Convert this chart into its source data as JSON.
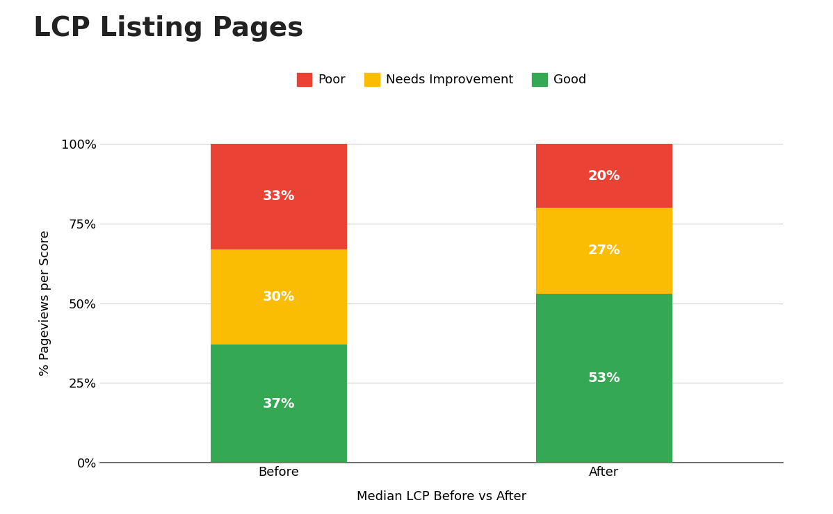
{
  "title": "LCP Listing Pages",
  "xlabel": "Median LCP Before vs After",
  "ylabel": "% Pageviews per Score",
  "categories": [
    "Before",
    "After"
  ],
  "good": [
    37,
    53
  ],
  "needs": [
    30,
    27
  ],
  "poor": [
    33,
    20
  ],
  "colors": {
    "good": "#34a853",
    "needs": "#fbbc04",
    "poor": "#ea4335"
  },
  "yticks": [
    0,
    25,
    50,
    75,
    100
  ],
  "ytick_labels": [
    "0%",
    "25%",
    "50%",
    "75%",
    "100%"
  ],
  "bar_width": 0.42,
  "title_fontsize": 28,
  "label_fontsize": 13,
  "tick_fontsize": 13,
  "legend_fontsize": 13,
  "annotation_fontsize": 14,
  "background_color": "#ffffff"
}
